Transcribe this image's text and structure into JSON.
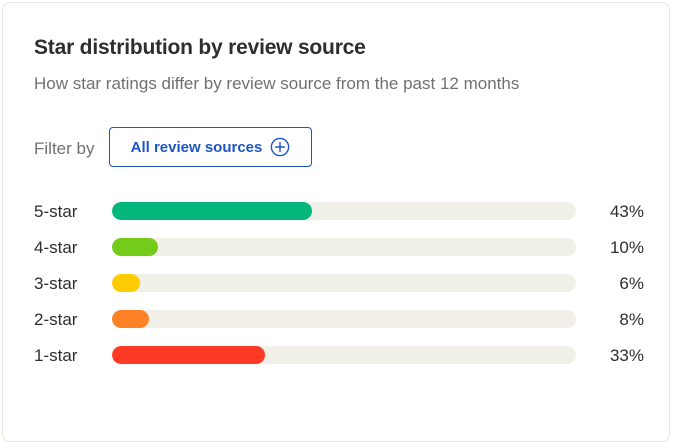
{
  "card": {
    "title": "Star distribution by review source",
    "subtitle": "How star ratings differ by review source from the past 12 months"
  },
  "filter": {
    "label": "Filter by",
    "button_label": "All review sources",
    "button_icon": "plus-circle-icon",
    "accent_color": "#1d56c4"
  },
  "distribution": [
    {
      "label": "5-star",
      "percent_label": "43%",
      "value": 43,
      "color": "#04b67c"
    },
    {
      "label": "4-star",
      "percent_label": "10%",
      "value": 10,
      "color": "#74cb19"
    },
    {
      "label": "3-star",
      "percent_label": "6%",
      "value": 6,
      "color": "#ffcc00"
    },
    {
      "label": "2-star",
      "percent_label": "8%",
      "value": 8,
      "color": "#ff8126"
    },
    {
      "label": "1-star",
      "percent_label": "33%",
      "value": 33,
      "color": "#fd3a25"
    }
  ]
}
